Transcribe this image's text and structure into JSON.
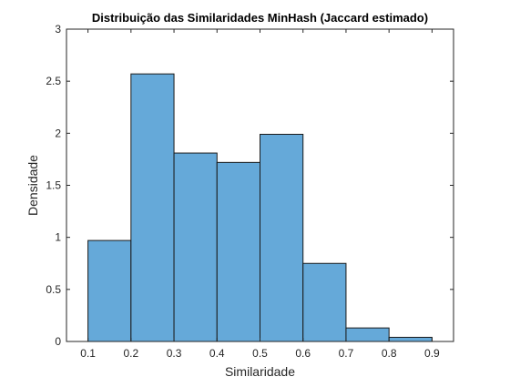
{
  "chart_data": {
    "type": "bar",
    "title": "Distribuição das Similaridades MinHash (Jaccard estimado)",
    "xlabel": "Similaridade",
    "ylabel": "Densidade",
    "xlim": [
      0.05,
      0.95
    ],
    "ylim": [
      0,
      3
    ],
    "xticks": [
      "0.1",
      "0.2",
      "0.3",
      "0.4",
      "0.5",
      "0.6",
      "0.7",
      "0.8",
      "0.9"
    ],
    "yticks": [
      "0",
      "0.5",
      "1",
      "1.5",
      "2",
      "2.5",
      "3"
    ],
    "bin_edges": [
      0.1,
      0.2,
      0.3,
      0.4,
      0.5,
      0.6,
      0.7,
      0.8,
      0.9
    ],
    "values": [
      0.97,
      2.57,
      1.81,
      1.72,
      1.99,
      0.75,
      0.13,
      0.04
    ],
    "grid": false,
    "colors": {
      "bar_fill": "#65a9d9",
      "bar_edge": "#1a1a1a",
      "axis": "#262626",
      "text": "#262626",
      "title": "#000000"
    }
  }
}
